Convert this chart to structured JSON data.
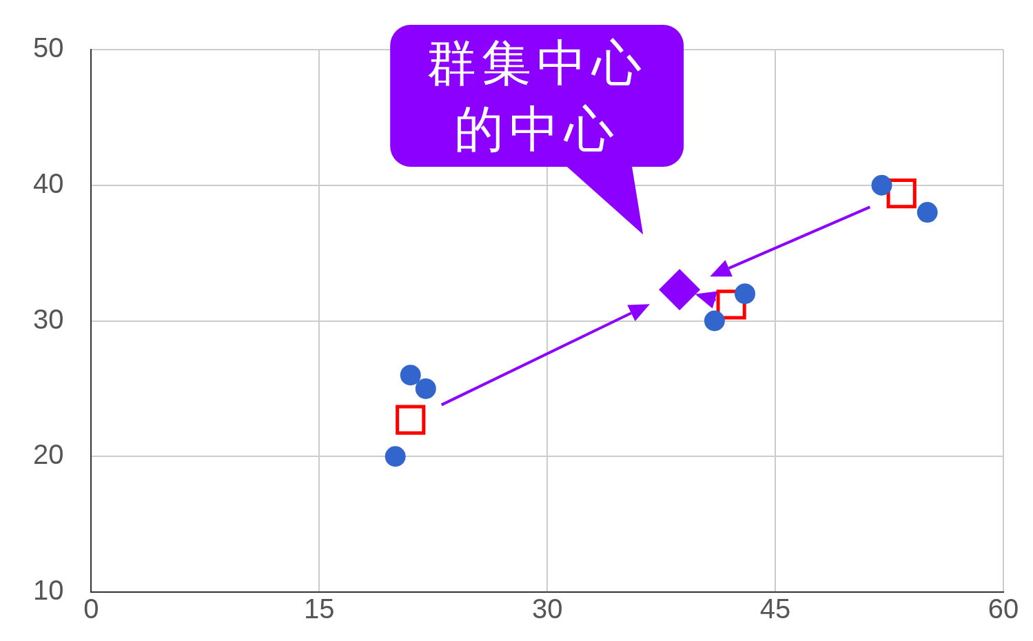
{
  "chart_data": {
    "type": "scatter",
    "xlim": [
      0,
      60
    ],
    "ylim": [
      10,
      50
    ],
    "xticks": [
      0,
      15,
      30,
      45,
      60
    ],
    "yticks": [
      10,
      20,
      30,
      40,
      50
    ],
    "grid": true,
    "annotations": [
      "群集中心的中心"
    ],
    "series": [
      {
        "color": "#3366cc",
        "marker": "circle",
        "x": [
          20,
          21,
          22,
          41,
          43,
          52,
          55
        ],
        "values": [
          20,
          26,
          25,
          30,
          32,
          40,
          38
        ]
      },
      {
        "color": "#ff0000",
        "marker": "square",
        "x": [
          21,
          42.1,
          53.3
        ],
        "values": [
          22.7,
          31.2,
          39.4
        ]
      },
      {
        "color": "#8b00ff",
        "marker": "diamond",
        "x": [
          38.7
        ],
        "values": [
          32.3
        ]
      }
    ]
  }
}
